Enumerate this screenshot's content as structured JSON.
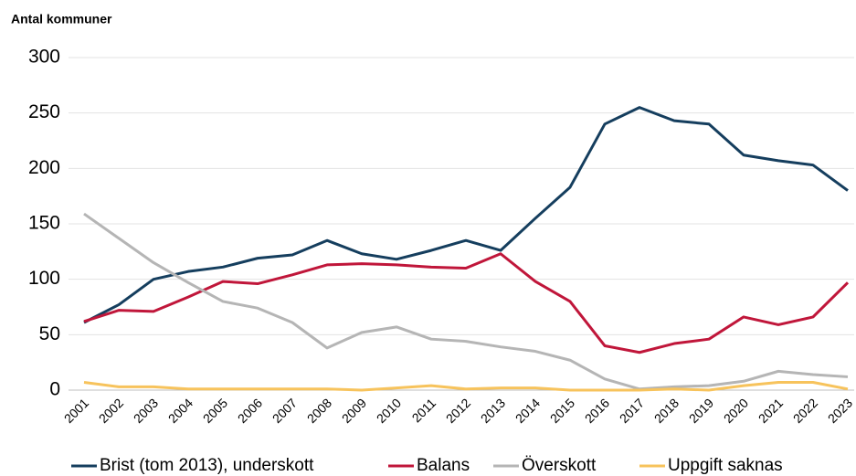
{
  "chart_data": {
    "type": "line",
    "y_axis_label": "Antal kommuner",
    "categories": [
      "2001",
      "2002",
      "2003",
      "2004",
      "2005",
      "2006",
      "2007",
      "2008",
      "2009",
      "2010",
      "2011",
      "2012",
      "2013",
      "2014",
      "2015",
      "2016",
      "2017",
      "2018",
      "2019",
      "2020",
      "2021",
      "2022",
      "2023"
    ],
    "series": [
      {
        "name": "Brist (tom 2013), underskott",
        "color": "#153e5e",
        "values": [
          61,
          77,
          100,
          107,
          111,
          119,
          122,
          135,
          123,
          118,
          126,
          135,
          126,
          155,
          183,
          240,
          255,
          243,
          240,
          212,
          207,
          203,
          180
        ]
      },
      {
        "name": "Balans",
        "color": "#c0163a",
        "values": [
          62,
          72,
          71,
          84,
          98,
          96,
          104,
          113,
          114,
          113,
          111,
          110,
          123,
          98,
          80,
          40,
          34,
          42,
          46,
          66,
          59,
          66,
          97
        ]
      },
      {
        "name": "Överskott",
        "color": "#b5b5b5",
        "values": [
          159,
          137,
          115,
          97,
          80,
          74,
          61,
          38,
          52,
          57,
          46,
          44,
          39,
          35,
          27,
          10,
          1,
          3,
          4,
          8,
          17,
          14,
          12
        ]
      },
      {
        "name": "Uppgift saknas",
        "color": "#f7c35c",
        "values": [
          7,
          3,
          3,
          1,
          1,
          1,
          1,
          1,
          0,
          2,
          4,
          1,
          2,
          2,
          0,
          0,
          0,
          1,
          0,
          4,
          7,
          7,
          1
        ]
      }
    ],
    "ylim": [
      0,
      300
    ],
    "yticks": [
      0,
      50,
      100,
      150,
      200,
      250,
      300
    ],
    "grid": true,
    "legend": "bottom"
  }
}
